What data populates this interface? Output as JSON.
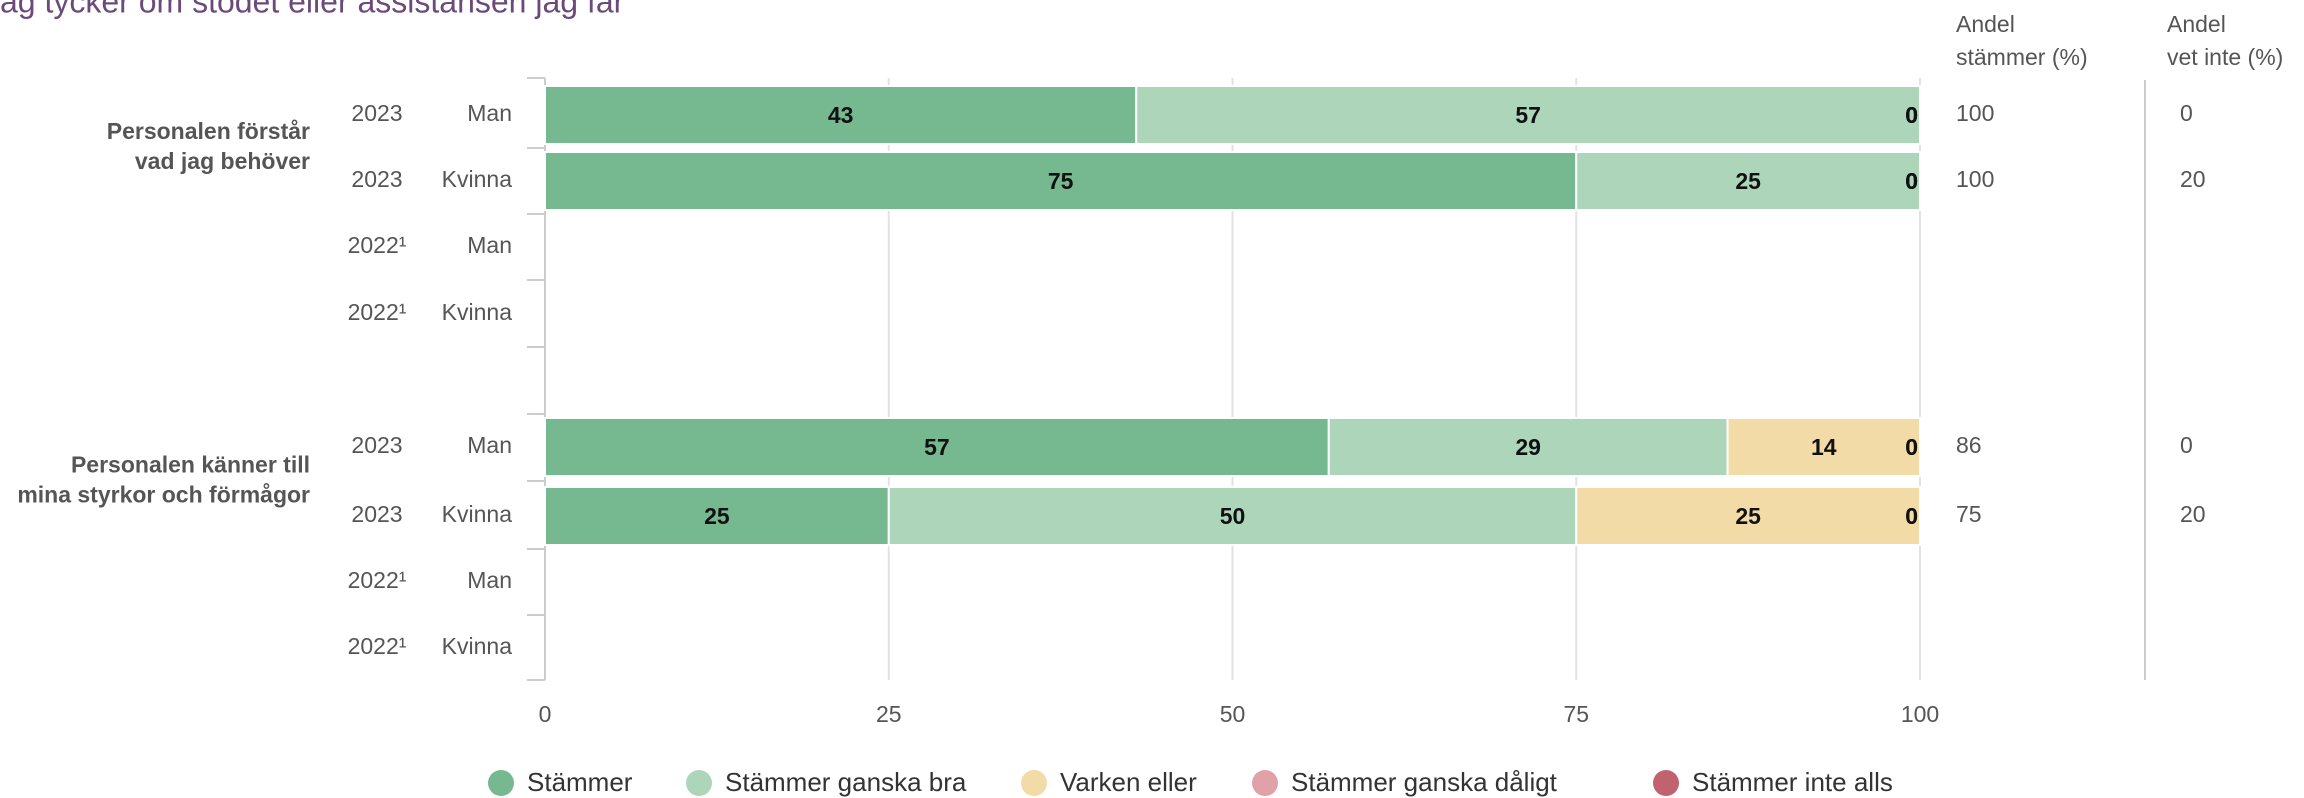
{
  "chart_data": {
    "type": "bar",
    "orientation": "horizontal",
    "stacked": true,
    "title": "ag tycker om stödet eller assistansen jag får",
    "groups": [
      {
        "label": [
          "Personalen förstår",
          "vad jag behöver"
        ],
        "rows": [
          {
            "year": "2023",
            "gender": "Man"
          },
          {
            "year": "2023",
            "gender": "Kvinna"
          },
          {
            "year": "2022¹",
            "gender": "Man"
          },
          {
            "year": "2022¹",
            "gender": "Kvinna"
          }
        ]
      },
      {
        "label": [
          "Personalen känner till",
          "mina styrkor och förmågor"
        ],
        "rows": [
          {
            "year": "2023",
            "gender": "Man"
          },
          {
            "year": "2023",
            "gender": "Kvinna"
          },
          {
            "year": "2022¹",
            "gender": "Man"
          },
          {
            "year": "2022¹",
            "gender": "Kvinna"
          }
        ]
      }
    ],
    "series": [
      {
        "name": "Stämmer",
        "color": "#76b88f",
        "values": [
          43,
          75,
          null,
          null,
          57,
          25,
          null,
          null
        ]
      },
      {
        "name": "Stämmer ganska bra",
        "color": "#acd5ba",
        "values": [
          57,
          25,
          null,
          null,
          29,
          50,
          null,
          null
        ]
      },
      {
        "name": "Varken eller",
        "color": "#f3dba8",
        "values": [
          0,
          0,
          null,
          null,
          14,
          25,
          null,
          null
        ]
      },
      {
        "name": "Stämmer ganska dåligt",
        "color": "#e0a1a8",
        "values": [
          0,
          0,
          null,
          null,
          0,
          0,
          null,
          null
        ]
      },
      {
        "name": "Stämmer inte alls",
        "color": "#c0636e",
        "values": [
          0,
          0,
          null,
          null,
          0,
          0,
          null,
          null
        ]
      }
    ],
    "columns": [
      {
        "label": [
          "Andel",
          "stämmer (%)"
        ],
        "values": [
          100,
          100,
          null,
          null,
          86,
          75,
          null,
          null
        ]
      },
      {
        "label": [
          "Andel",
          "vet inte (%)"
        ],
        "values": [
          0,
          20,
          null,
          null,
          0,
          20,
          null,
          null
        ]
      }
    ],
    "xlim": [
      0,
      100
    ],
    "xticks": [
      0,
      25,
      50,
      75,
      100
    ],
    "grid": true
  }
}
